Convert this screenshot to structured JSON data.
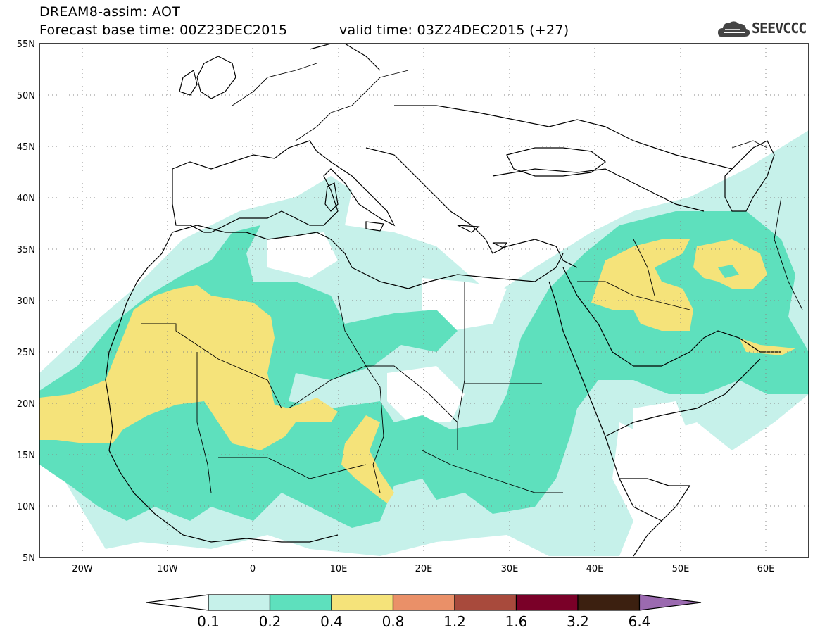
{
  "header": {
    "line1": "DREAM8-assim: AOT",
    "line2": "Forecast base time: 00Z23DEC2015",
    "valid": "valid time: 03Z24DEC2015 (+27)"
  },
  "logo": {
    "text": "SEEVCCC",
    "icon": "cloud-logo-icon"
  },
  "map": {
    "variable": "AOT",
    "lon_range": [
      -25,
      65
    ],
    "lat_range": [
      5,
      55
    ],
    "lat_ticks": [
      "55N",
      "50N",
      "45N",
      "40N",
      "35N",
      "30N",
      "25N",
      "20N",
      "15N",
      "10N",
      "5N"
    ],
    "lon_ticks": [
      "20W",
      "10W",
      "0",
      "10E",
      "20E",
      "30E",
      "40E",
      "50E",
      "60E"
    ],
    "grid": "dotted"
  },
  "colorbar": {
    "labels": [
      "0.1",
      "0.2",
      "0.4",
      "0.8",
      "1.2",
      "1.6",
      "3.2",
      "6.4"
    ],
    "colors": [
      "#ffffff",
      "#c6f1ea",
      "#5ee0bd",
      "#f5e37a",
      "#ea9068",
      "#a84a3c",
      "#7a0028",
      "#3c2010",
      "#9b6ab0"
    ]
  }
}
